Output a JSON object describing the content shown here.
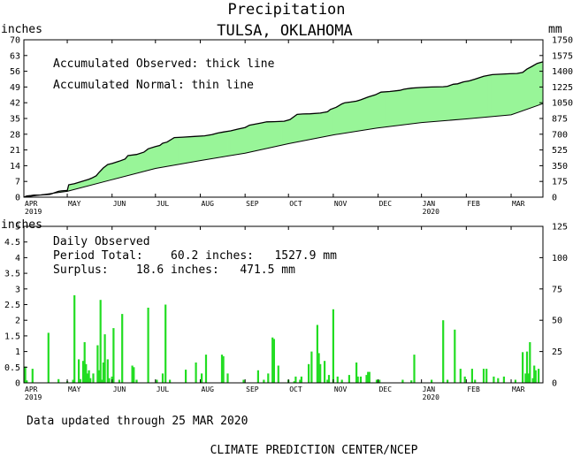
{
  "chart_data": [
    {
      "type": "area",
      "title": "Precipitation",
      "subtitle": "TULSA, OKLAHOMA",
      "ylabel_left": "inches",
      "ylabel_right": "mm",
      "ylim": [
        0,
        70
      ],
      "ylim_right": [
        0,
        1750
      ],
      "y_ticks": [
        "0",
        "7",
        "14",
        "21",
        "28",
        "35",
        "42",
        "49",
        "56",
        "63",
        "70"
      ],
      "y_ticks_right": [
        "0",
        "175",
        "350",
        "525",
        "700",
        "875",
        "1050",
        "1225",
        "1400",
        "1575",
        "1750"
      ],
      "months": [
        "APR",
        "MAY",
        "JUN",
        "JUL",
        "AUG",
        "SEP",
        "OCT",
        "NOV",
        "DEC",
        "JAN",
        "FEB",
        "MAR"
      ],
      "year_labels": [
        "2019",
        "2020"
      ],
      "legend": [
        "Accumulated Observed: thick line",
        "Accumulated Normal: thin line"
      ],
      "fill_above": "#98f598",
      "fill_below": "#f09090",
      "x_unit": "day index since 2019-04-01",
      "x_range": [
        0,
        359
      ],
      "series": [
        {
          "name": "Accumulated Observed",
          "points": [
            [
              0,
              0
            ],
            [
              2,
              0.5
            ],
            [
              5,
              0.7
            ],
            [
              7,
              0.9
            ],
            [
              12,
              1.0
            ],
            [
              18,
              1.2
            ],
            [
              24,
              2.6
            ],
            [
              26,
              2.8
            ],
            [
              30,
              3.0
            ],
            [
              31,
              5.5
            ],
            [
              35,
              6.0
            ],
            [
              40,
              7.0
            ],
            [
              45,
              8.0
            ],
            [
              47,
              8.5
            ],
            [
              50,
              9.5
            ],
            [
              52,
              11.0
            ],
            [
              55,
              13.0
            ],
            [
              58,
              14.5
            ],
            [
              61,
              15.0
            ],
            [
              66,
              16.0
            ],
            [
              70,
              17.0
            ],
            [
              72,
              18.5
            ],
            [
              78,
              19.0
            ],
            [
              83,
              20.0
            ],
            [
              86,
              21.5
            ],
            [
              91,
              22.5
            ],
            [
              94,
              23.0
            ],
            [
              96,
              24.0
            ],
            [
              99,
              24.5
            ],
            [
              104,
              26.5
            ],
            [
              110,
              26.7
            ],
            [
              118,
              27.0
            ],
            [
              125,
              27.3
            ],
            [
              130,
              27.8
            ],
            [
              134,
              28.5
            ],
            [
              138,
              29.0
            ],
            [
              143,
              29.5
            ],
            [
              148,
              30.3
            ],
            [
              153,
              31.0
            ],
            [
              156,
              32.0
            ],
            [
              160,
              32.5
            ],
            [
              164,
              33.0
            ],
            [
              168,
              33.5
            ],
            [
              173,
              33.6
            ],
            [
              180,
              33.8
            ],
            [
              184,
              34.5
            ],
            [
              189,
              36.8
            ],
            [
              193,
              37.0
            ],
            [
              198,
              37.1
            ],
            [
              205,
              37.4
            ],
            [
              210,
              38.0
            ],
            [
              212,
              39.0
            ],
            [
              216,
              40.0
            ],
            [
              220,
              41.5
            ],
            [
              222,
              42.0
            ],
            [
              226,
              42.3
            ],
            [
              230,
              42.7
            ],
            [
              233,
              43.3
            ],
            [
              238,
              44.5
            ],
            [
              243,
              45.5
            ],
            [
              247,
              46.7
            ],
            [
              253,
              47.0
            ],
            [
              260,
              47.5
            ],
            [
              263,
              48.0
            ],
            [
              268,
              48.5
            ],
            [
              275,
              48.8
            ],
            [
              282,
              49.0
            ],
            [
              290,
              49.1
            ],
            [
              293,
              49.3
            ],
            [
              297,
              50.2
            ],
            [
              300,
              50.4
            ],
            [
              304,
              51.3
            ],
            [
              308,
              51.7
            ],
            [
              312,
              52.5
            ],
            [
              318,
              53.8
            ],
            [
              324,
              54.5
            ],
            [
              330,
              54.7
            ],
            [
              336,
              54.9
            ],
            [
              341,
              55.0
            ],
            [
              345,
              55.5
            ],
            [
              348,
              57.0
            ],
            [
              351,
              58.0
            ],
            [
              355,
              59.5
            ],
            [
              359,
              60.2
            ]
          ]
        },
        {
          "name": "Accumulated Normal",
          "points": [
            [
              0,
              0
            ],
            [
              30,
              2.6
            ],
            [
              61,
              7.8
            ],
            [
              91,
              12.8
            ],
            [
              122,
              16.3
            ],
            [
              153,
              19.6
            ],
            [
              183,
              23.8
            ],
            [
              214,
              27.7
            ],
            [
              244,
              30.7
            ],
            [
              275,
              33.2
            ],
            [
              306,
              34.8
            ],
            [
              337,
              36.6
            ],
            [
              359,
              41.6
            ]
          ]
        }
      ]
    },
    {
      "type": "bar",
      "title": "Daily Observed",
      "ylabel_left": "inches",
      "ylim": [
        0,
        5
      ],
      "ylim_right": [
        0,
        125
      ],
      "y_ticks": [
        "0",
        "0.5",
        "1",
        "1.5",
        "2",
        "2.5",
        "3",
        "3.5",
        "4",
        "4.5",
        "5"
      ],
      "y_ticks_right": [
        "0",
        "25",
        "50",
        "75",
        "100",
        "125"
      ],
      "months": [
        "APR",
        "MAY",
        "JUN",
        "JUL",
        "AUG",
        "SEP",
        "OCT",
        "NOV",
        "DEC",
        "JAN",
        "FEB",
        "MAR"
      ],
      "year_labels": [
        "2019",
        "2020"
      ],
      "bar_color": "#22dd22",
      "annotations": [
        "Period Total:    60.2 inches:   1527.9 mm",
        "Surplus:    18.6 inches:   471.5 mm"
      ],
      "x_unit": "day index since 2019-04-01",
      "bars": [
        [
          1,
          0.52
        ],
        [
          2,
          0.08
        ],
        [
          6,
          0.45
        ],
        [
          17,
          1.6
        ],
        [
          24,
          0.12
        ],
        [
          30,
          0.05
        ],
        [
          34,
          0.1
        ],
        [
          35,
          2.8
        ],
        [
          38,
          0.75
        ],
        [
          39,
          0.12
        ],
        [
          41,
          0.7
        ],
        [
          42,
          1.3
        ],
        [
          43,
          0.6
        ],
        [
          44,
          0.3
        ],
        [
          45,
          0.4
        ],
        [
          46,
          0.15
        ],
        [
          48,
          0.3
        ],
        [
          51,
          1.2
        ],
        [
          52,
          0.4
        ],
        [
          53,
          2.65
        ],
        [
          54,
          0.1
        ],
        [
          55,
          0.65
        ],
        [
          56,
          1.55
        ],
        [
          58,
          0.75
        ],
        [
          59,
          0.15
        ],
        [
          61,
          0.2
        ],
        [
          62,
          1.75
        ],
        [
          66,
          0.1
        ],
        [
          68,
          2.2
        ],
        [
          75,
          0.55
        ],
        [
          76,
          0.5
        ],
        [
          78,
          0.1
        ],
        [
          86,
          2.4
        ],
        [
          92,
          0.1
        ],
        [
          96,
          0.3
        ],
        [
          98,
          2.5
        ],
        [
          101,
          0.1
        ],
        [
          112,
          0.42
        ],
        [
          119,
          0.65
        ],
        [
          123,
          0.3
        ],
        [
          126,
          0.9
        ],
        [
          137,
          0.9
        ],
        [
          138,
          0.85
        ],
        [
          141,
          0.3
        ],
        [
          152,
          0.1
        ],
        [
          162,
          0.4
        ],
        [
          166,
          0.1
        ],
        [
          169,
          0.3
        ],
        [
          172,
          1.45
        ],
        [
          173,
          1.4
        ],
        [
          176,
          0.55
        ],
        [
          183,
          0.1
        ],
        [
          187,
          0.05
        ],
        [
          188,
          0.2
        ],
        [
          191,
          0.1
        ],
        [
          192,
          0.2
        ],
        [
          197,
          0.6
        ],
        [
          199,
          1.0
        ],
        [
          203,
          1.85
        ],
        [
          204,
          0.95
        ],
        [
          205,
          0.6
        ],
        [
          208,
          0.7
        ],
        [
          210,
          0.1
        ],
        [
          211,
          0.25
        ],
        [
          214,
          2.35
        ],
        [
          217,
          0.2
        ],
        [
          220,
          0.1
        ],
        [
          225,
          0.25
        ],
        [
          230,
          0.65
        ],
        [
          231,
          0.2
        ],
        [
          233,
          0.2
        ],
        [
          237,
          0.25
        ],
        [
          238,
          0.35
        ],
        [
          239,
          0.35
        ],
        [
          244,
          0.1
        ],
        [
          246,
          0.1
        ],
        [
          262,
          0.1
        ],
        [
          268,
          0.08
        ],
        [
          270,
          0.9
        ],
        [
          282,
          0.1
        ],
        [
          290,
          2.0
        ],
        [
          293,
          0.1
        ],
        [
          298,
          1.7
        ],
        [
          302,
          0.45
        ],
        [
          305,
          0.2
        ],
        [
          310,
          0.45
        ],
        [
          312,
          0.1
        ],
        [
          318,
          0.45
        ],
        [
          320,
          0.45
        ],
        [
          325,
          0.2
        ],
        [
          328,
          0.15
        ],
        [
          332,
          0.2
        ],
        [
          340,
          0.1
        ],
        [
          345,
          0.98
        ],
        [
          347,
          0.3
        ],
        [
          348,
          1.0
        ],
        [
          349,
          0.3
        ],
        [
          350,
          1.3
        ],
        [
          352,
          0.15
        ],
        [
          353,
          0.55
        ],
        [
          354,
          0.4
        ],
        [
          356,
          0.45
        ]
      ]
    }
  ],
  "footer_update": "Data updated through 25 MAR 2020",
  "footer_agency": "CLIMATE PREDICTION CENTER/NCEP"
}
